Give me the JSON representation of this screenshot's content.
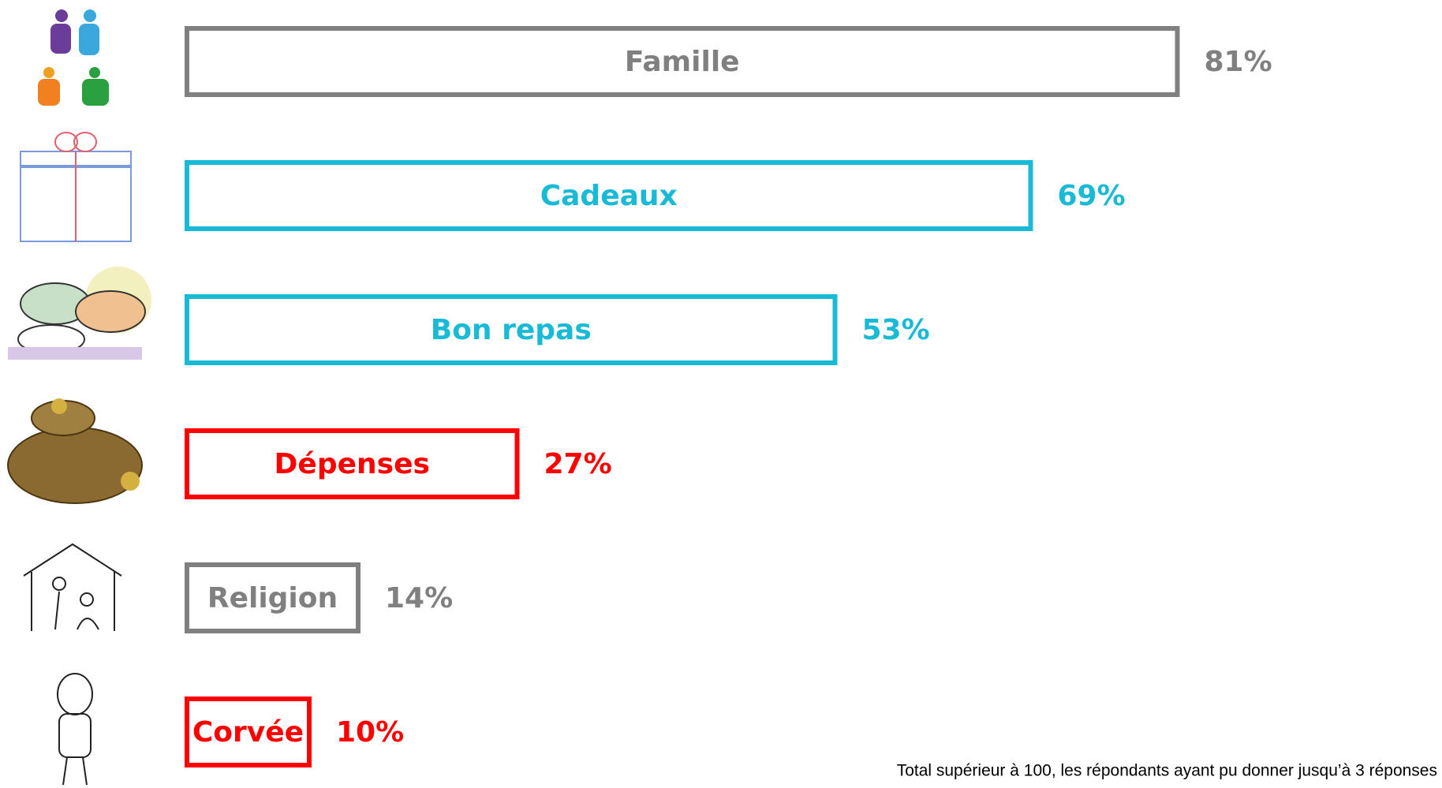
{
  "chart_data": {
    "type": "bar",
    "categories": [
      "Famille",
      "Cadeaux",
      "Bon repas",
      "Dépenses",
      "Religion",
      "Corvée"
    ],
    "values": [
      81,
      69,
      53,
      27,
      14,
      10
    ],
    "value_labels": [
      "81%",
      "69%",
      "53%",
      "27%",
      "14%",
      "10%"
    ],
    "colors": [
      "#808080",
      "#19bad6",
      "#19bad6",
      "#ff0000",
      "#808080",
      "#ff0000"
    ],
    "note": "Total supérieur à 100, les répondants ayant pu donner jusqu’à 3 réponses"
  }
}
